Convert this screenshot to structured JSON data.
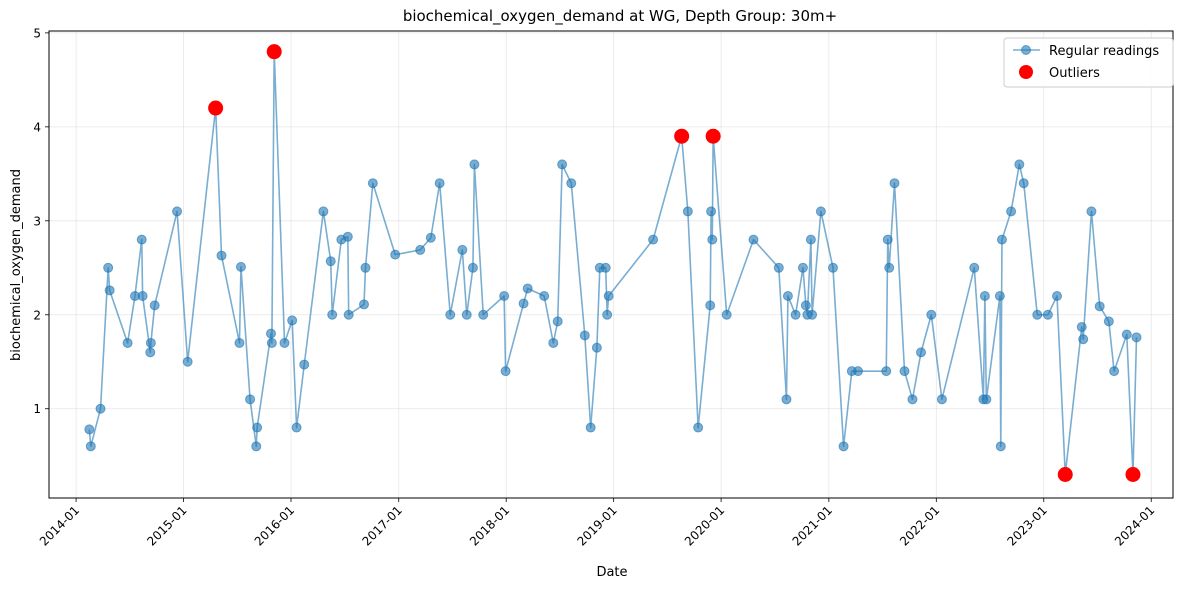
{
  "chart_data": {
    "type": "line",
    "title": "biochemical_oxygen_demand at WG, Depth Group: 30m+",
    "xlabel": "Date",
    "ylabel": "biochemical_oxygen_demand",
    "xlim": [
      "2013-10-01",
      "2024-03-15"
    ],
    "ylim": [
      0.05,
      5.02
    ],
    "x_ticks": [
      "2014-01",
      "2015-01",
      "2016-01",
      "2017-01",
      "2018-01",
      "2019-01",
      "2020-01",
      "2021-01",
      "2022-01",
      "2023-01",
      "2024-01"
    ],
    "y_ticks": [
      1,
      2,
      3,
      4,
      5
    ],
    "grid": true,
    "legend_position": "top-right",
    "series": [
      {
        "name": "Regular readings",
        "color": "#1f77b4",
        "style": "line-with-circle-markers",
        "points": [
          [
            "2014-02-15",
            0.78
          ],
          [
            "2014-02-20",
            0.6
          ],
          [
            "2014-03-25",
            1.0
          ],
          [
            "2014-04-20",
            2.5
          ],
          [
            "2014-04-25",
            2.26
          ],
          [
            "2014-06-25",
            1.7
          ],
          [
            "2014-07-20",
            2.2
          ],
          [
            "2014-08-12",
            2.8
          ],
          [
            "2014-08-15",
            2.2
          ],
          [
            "2014-09-10",
            1.6
          ],
          [
            "2014-09-12",
            1.7
          ],
          [
            "2014-09-25",
            2.1
          ],
          [
            "2014-12-10",
            3.1
          ],
          [
            "2015-01-15",
            1.5
          ],
          [
            "2015-04-20",
            4.2
          ],
          [
            "2015-05-10",
            2.63
          ],
          [
            "2015-07-10",
            1.7
          ],
          [
            "2015-07-15",
            2.51
          ],
          [
            "2015-08-15",
            1.1
          ],
          [
            "2015-09-05",
            0.6
          ],
          [
            "2015-09-08",
            0.8
          ],
          [
            "2015-10-25",
            1.8
          ],
          [
            "2015-10-28",
            1.7
          ],
          [
            "2015-11-05",
            4.8
          ],
          [
            "2015-12-10",
            1.7
          ],
          [
            "2016-01-05",
            1.94
          ],
          [
            "2016-01-20",
            0.8
          ],
          [
            "2016-02-15",
            1.47
          ],
          [
            "2016-04-20",
            3.1
          ],
          [
            "2016-05-15",
            2.57
          ],
          [
            "2016-05-20",
            2.0
          ],
          [
            "2016-06-20",
            2.8
          ],
          [
            "2016-07-12",
            2.83
          ],
          [
            "2016-07-15",
            2.0
          ],
          [
            "2016-09-05",
            2.11
          ],
          [
            "2016-09-10",
            2.5
          ],
          [
            "2016-10-05",
            3.4
          ],
          [
            "2016-12-20",
            2.64
          ],
          [
            "2017-03-15",
            2.69
          ],
          [
            "2017-04-20",
            2.82
          ],
          [
            "2017-05-20",
            3.4
          ],
          [
            "2017-06-25",
            2.0
          ],
          [
            "2017-08-05",
            2.69
          ],
          [
            "2017-08-20",
            2.0
          ],
          [
            "2017-09-10",
            2.5
          ],
          [
            "2017-09-15",
            3.6
          ],
          [
            "2017-10-15",
            2.0
          ],
          [
            "2017-12-25",
            2.2
          ],
          [
            "2017-12-30",
            1.4
          ],
          [
            "2018-03-01",
            2.12
          ],
          [
            "2018-03-15",
            2.28
          ],
          [
            "2018-05-10",
            2.2
          ],
          [
            "2018-06-10",
            1.7
          ],
          [
            "2018-06-25",
            1.93
          ],
          [
            "2018-07-10",
            3.6
          ],
          [
            "2018-08-10",
            3.4
          ],
          [
            "2018-09-25",
            1.78
          ],
          [
            "2018-10-15",
            0.8
          ],
          [
            "2018-11-05",
            1.65
          ],
          [
            "2018-11-15",
            2.5
          ],
          [
            "2018-12-05",
            2.5
          ],
          [
            "2018-12-10",
            2.0
          ],
          [
            "2018-12-15",
            2.2
          ],
          [
            "2019-05-15",
            2.8
          ],
          [
            "2019-08-20",
            3.9
          ],
          [
            "2019-09-10",
            3.1
          ],
          [
            "2019-10-15",
            0.8
          ],
          [
            "2019-11-25",
            2.1
          ],
          [
            "2019-11-28",
            3.1
          ],
          [
            "2019-12-02",
            2.8
          ],
          [
            "2019-12-05",
            3.9
          ],
          [
            "2020-01-20",
            2.0
          ],
          [
            "2020-04-20",
            2.8
          ],
          [
            "2020-07-15",
            2.5
          ],
          [
            "2020-08-10",
            1.1
          ],
          [
            "2020-08-15",
            2.2
          ],
          [
            "2020-09-10",
            2.0
          ],
          [
            "2020-10-05",
            2.5
          ],
          [
            "2020-10-15",
            2.1
          ],
          [
            "2020-10-20",
            2.0
          ],
          [
            "2020-11-01",
            2.8
          ],
          [
            "2020-11-05",
            2.0
          ],
          [
            "2020-12-05",
            3.1
          ],
          [
            "2021-01-15",
            2.5
          ],
          [
            "2021-02-20",
            0.6
          ],
          [
            "2021-03-20",
            1.4
          ],
          [
            "2021-04-10",
            1.4
          ],
          [
            "2021-07-15",
            1.4
          ],
          [
            "2021-07-20",
            2.8
          ],
          [
            "2021-07-25",
            2.5
          ],
          [
            "2021-08-12",
            3.4
          ],
          [
            "2021-09-15",
            1.4
          ],
          [
            "2021-10-12",
            1.1
          ],
          [
            "2021-11-10",
            1.6
          ],
          [
            "2021-12-15",
            2.0
          ],
          [
            "2022-01-20",
            1.1
          ],
          [
            "2022-05-10",
            2.5
          ],
          [
            "2022-06-10",
            1.1
          ],
          [
            "2022-06-15",
            2.2
          ],
          [
            "2022-06-20",
            1.1
          ],
          [
            "2022-08-05",
            2.2
          ],
          [
            "2022-08-08",
            0.6
          ],
          [
            "2022-08-12",
            2.8
          ],
          [
            "2022-09-12",
            3.1
          ],
          [
            "2022-10-10",
            3.6
          ],
          [
            "2022-10-25",
            3.4
          ],
          [
            "2022-12-10",
            2.0
          ],
          [
            "2023-01-15",
            2.0
          ],
          [
            "2023-02-15",
            2.2
          ],
          [
            "2023-03-15",
            0.3
          ],
          [
            "2023-05-10",
            1.87
          ],
          [
            "2023-05-15",
            1.74
          ],
          [
            "2023-06-12",
            3.1
          ],
          [
            "2023-07-10",
            2.09
          ],
          [
            "2023-08-10",
            1.93
          ],
          [
            "2023-08-28",
            1.4
          ],
          [
            "2023-10-10",
            1.79
          ],
          [
            "2023-10-31",
            0.3
          ],
          [
            "2023-11-12",
            1.76
          ]
        ]
      },
      {
        "name": "Outliers",
        "color": "#ff0000",
        "style": "large-circle-markers",
        "points": [
          [
            "2015-04-20",
            4.2
          ],
          [
            "2015-11-05",
            4.8
          ],
          [
            "2019-08-20",
            3.9
          ],
          [
            "2019-12-05",
            3.9
          ],
          [
            "2023-03-15",
            0.3
          ],
          [
            "2023-10-31",
            0.3
          ]
        ]
      }
    ]
  }
}
